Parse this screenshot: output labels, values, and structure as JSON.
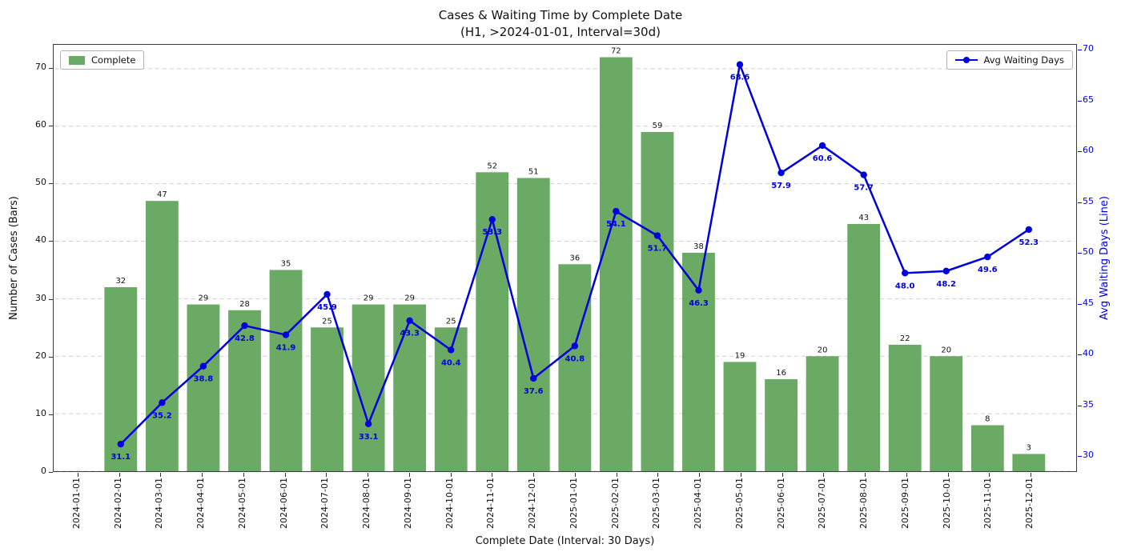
{
  "chart_data": {
    "type": "combo-bar-line",
    "title_line1": "Cases & Waiting Time by Complete Date",
    "title_line2": "(H1, >2024-01-01, Interval=30d)",
    "xlabel": "Complete Date (Interval: 30 Days)",
    "ylabel_left": "Number of Cases (Bars)",
    "ylabel_right": "Avg Waiting Days (Line)",
    "grid": true,
    "legend_positions": [
      "upper-left",
      "upper-right"
    ],
    "categories": [
      "2024-01-01",
      "2024-02-01",
      "2024-03-01",
      "2024-04-01",
      "2024-05-01",
      "2024-06-01",
      "2024-07-01",
      "2024-08-01",
      "2024-09-01",
      "2024-10-01",
      "2024-11-01",
      "2024-12-01",
      "2025-01-01",
      "2025-02-01",
      "2025-03-01",
      "2025-04-01",
      "2025-05-01",
      "2025-06-01",
      "2025-07-01",
      "2025-08-01",
      "2025-09-01",
      "2025-10-01",
      "2025-11-01",
      "2025-12-01"
    ],
    "series": [
      {
        "name": "Complete",
        "type": "bar",
        "axis": "left",
        "color": "#6aaa64",
        "values": [
          null,
          32,
          47,
          29,
          28,
          35,
          25,
          29,
          29,
          25,
          52,
          51,
          36,
          72,
          59,
          38,
          19,
          16,
          20,
          43,
          22,
          20,
          8,
          3
        ]
      },
      {
        "name": "Avg Waiting Days",
        "type": "line",
        "axis": "right",
        "color": "#0000dd",
        "values": [
          null,
          31.1,
          35.2,
          38.8,
          42.8,
          41.9,
          45.9,
          33.1,
          43.3,
          40.4,
          53.3,
          37.6,
          40.8,
          54.1,
          51.7,
          46.3,
          68.6,
          57.9,
          60.6,
          57.7,
          48.0,
          48.2,
          49.6,
          52.3
        ]
      }
    ],
    "left_ticks": [
      0,
      10,
      20,
      30,
      40,
      50,
      60,
      70
    ],
    "right_ticks": [
      30,
      35,
      40,
      45,
      50,
      55,
      60,
      65,
      70
    ],
    "left_range": [
      0,
      74.2
    ],
    "right_range": [
      28.4,
      70.6
    ]
  }
}
